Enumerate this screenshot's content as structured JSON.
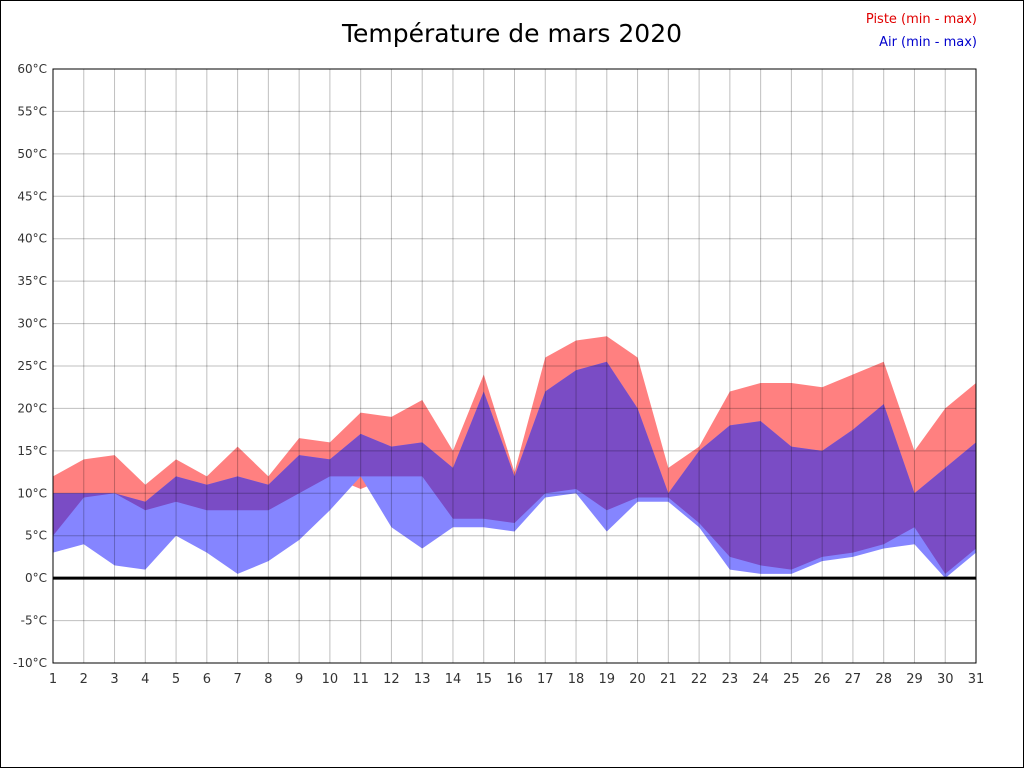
{
  "title": "Température de mars 2020",
  "legend": {
    "piste": "Piste (min - max)",
    "air": "Air (min - max)"
  },
  "colors": {
    "piste_fill": "#ff8080",
    "air_fill": "#8585ff",
    "overlap_fill": "#7a4cc5",
    "piste_text": "#e00000",
    "air_text": "#0000cc",
    "grid": "rgba(0,0,0,0.25)",
    "axis": "#000000",
    "tick_text": "#333333"
  },
  "chart_data": {
    "type": "area",
    "title": "Température de mars 2020",
    "xlabel": "",
    "ylabel": "",
    "x": [
      1,
      2,
      3,
      4,
      5,
      6,
      7,
      8,
      9,
      10,
      11,
      12,
      13,
      14,
      15,
      16,
      17,
      18,
      19,
      20,
      21,
      22,
      23,
      24,
      25,
      26,
      27,
      28,
      29,
      30,
      31
    ],
    "xtick_labels": [
      "1",
      "2",
      "3",
      "4",
      "5",
      "6",
      "7",
      "8",
      "9",
      "10",
      "11",
      "12",
      "13",
      "14",
      "15",
      "16",
      "17",
      "18",
      "19",
      "20",
      "21",
      "22",
      "23",
      "24",
      "25",
      "26",
      "27",
      "28",
      "29",
      "30",
      "31"
    ],
    "ylim": [
      -10,
      60
    ],
    "ytick_step": 5,
    "ytick_labels": [
      "60°C",
      "55°C",
      "50°C",
      "45°C",
      "40°C",
      "35°C",
      "30°C",
      "25°C",
      "20°C",
      "15°C",
      "10°C",
      "5°C",
      "0°C",
      "-5°C",
      "-10°C"
    ],
    "grid": true,
    "legend_position": "top-right",
    "zero_line": true,
    "series": [
      {
        "name": "Piste (min - max)",
        "min": [
          5,
          9.5,
          10,
          8,
          9,
          8,
          8,
          8,
          10,
          12,
          10.5,
          12,
          12,
          7,
          7,
          6.5,
          10,
          10.5,
          8,
          9.5,
          9.5,
          6.5,
          2.5,
          1.5,
          1,
          2.5,
          3,
          4,
          6,
          0.5,
          3.5
        ],
        "max": [
          12,
          14,
          14.5,
          11,
          14,
          12,
          15.5,
          12,
          16.5,
          16,
          19.5,
          19,
          21,
          15,
          24,
          12.5,
          26,
          28,
          28.5,
          26,
          13,
          15.5,
          22,
          23,
          23,
          22.5,
          24,
          25.5,
          15,
          20,
          23
        ]
      },
      {
        "name": "Air (min - max)",
        "min": [
          3,
          4,
          1.5,
          1,
          5,
          3,
          0.5,
          2,
          4.5,
          8,
          12,
          6,
          3.5,
          6,
          6,
          5.5,
          9.5,
          10,
          5.5,
          9,
          9,
          6,
          1,
          0.5,
          0.5,
          2,
          2.5,
          3.5,
          4,
          0,
          3
        ],
        "max": [
          10,
          10,
          10,
          9,
          12,
          11,
          12,
          11,
          14.5,
          14,
          17,
          15.5,
          16,
          13,
          22,
          12,
          22,
          24.5,
          25.5,
          20,
          10,
          15,
          18,
          18.5,
          15.5,
          15,
          17.5,
          20.5,
          10,
          13,
          16
        ]
      }
    ]
  }
}
